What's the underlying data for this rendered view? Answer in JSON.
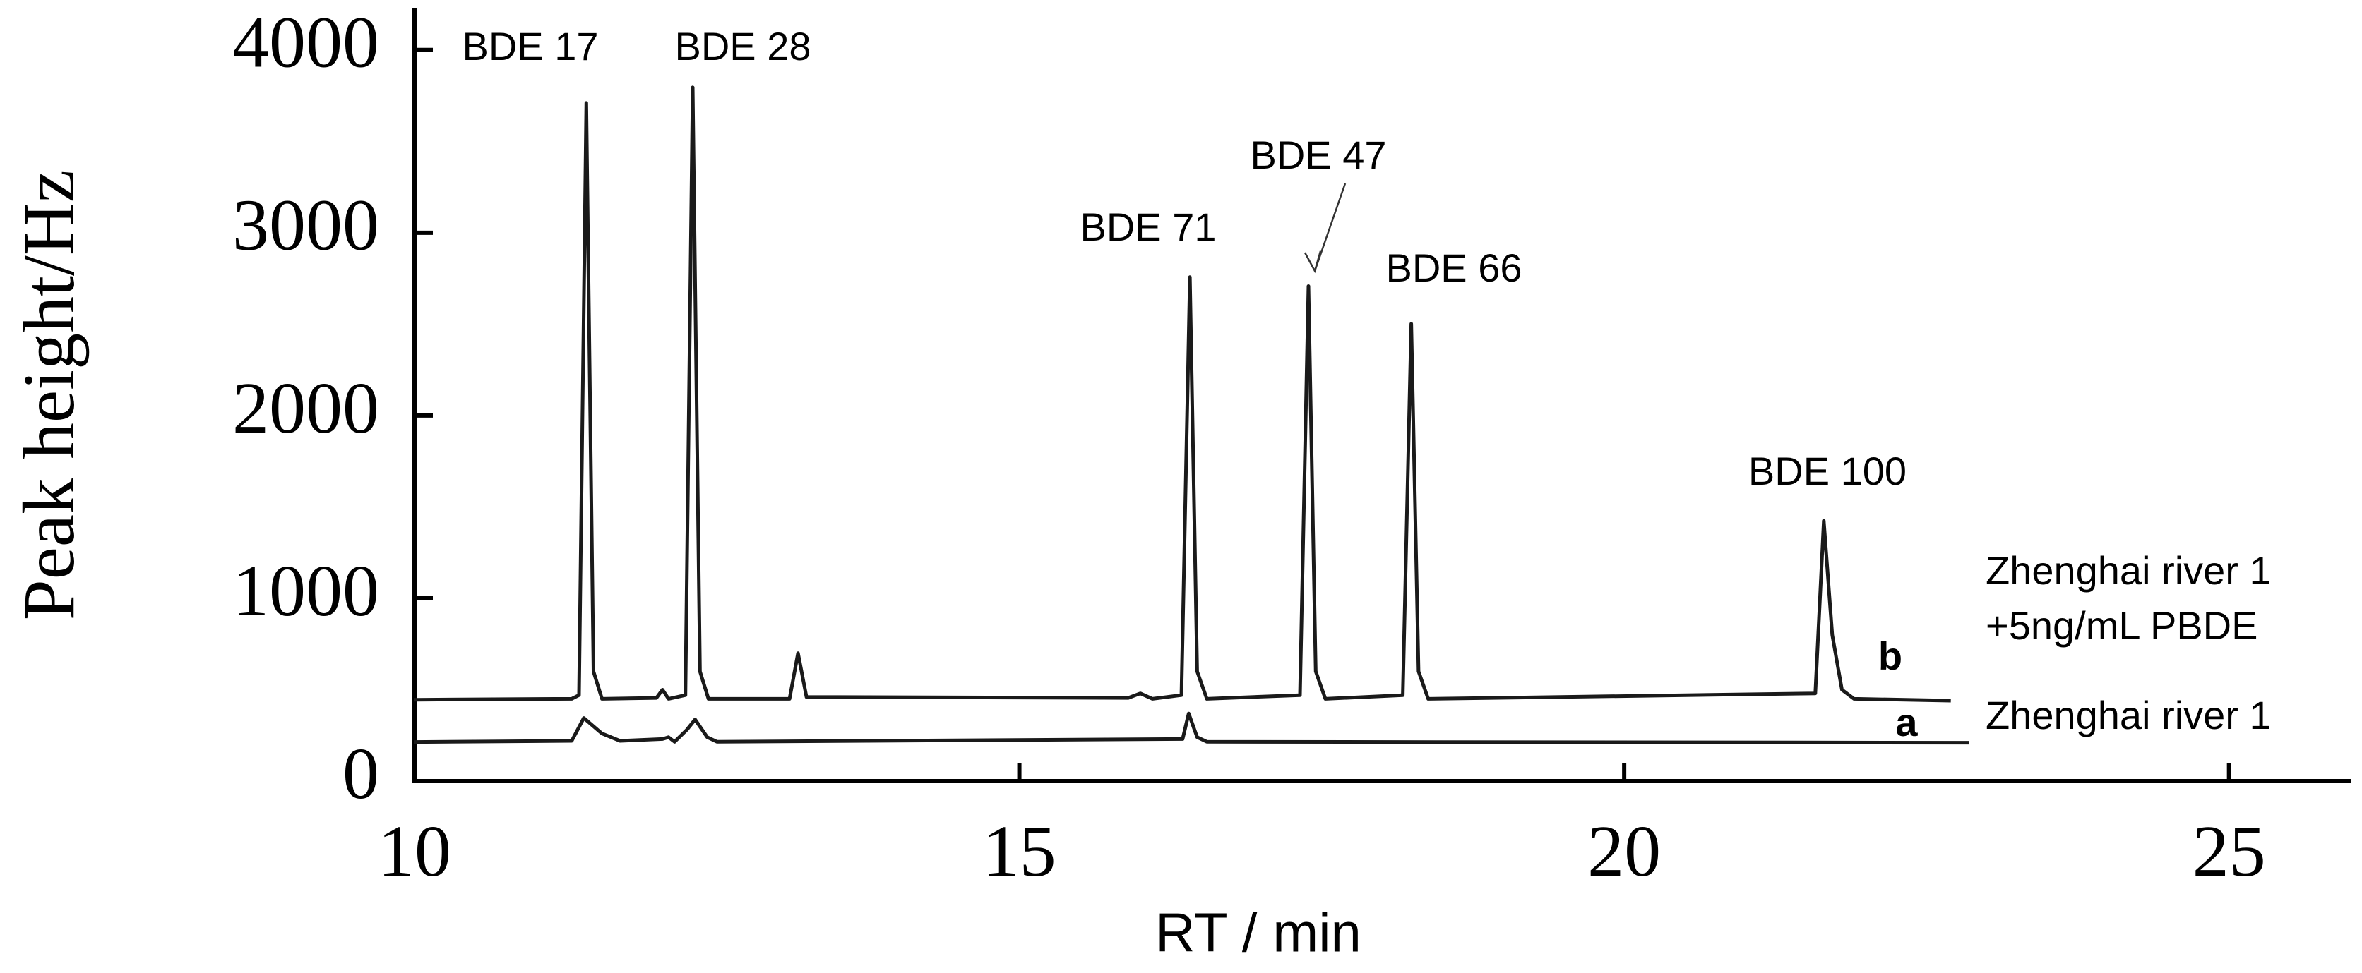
{
  "chart_data": {
    "type": "line",
    "xlabel": "RT / min",
    "ylabel": "Peak height/Hz",
    "xlim": [
      10,
      26
    ],
    "ylim": [
      0,
      4200
    ],
    "xticks": [
      10,
      15,
      20,
      25
    ],
    "yticks": [
      0,
      1000,
      2000,
      3000,
      4000
    ],
    "annotations": [
      "BDE 17",
      "BDE 28",
      "BDE 71",
      "BDE 47",
      "BDE 66",
      "BDE 100"
    ],
    "series": [
      {
        "name": "Zhenghai river 1 +5ng/mL PBDE",
        "label": "b",
        "color": "#1a1a1a",
        "x": [
          10,
          11.3,
          11.36,
          11.42,
          11.48,
          11.55,
          12.0,
          12.05,
          12.1,
          12.24,
          12.3,
          12.36,
          12.43,
          13.1,
          13.17,
          13.24,
          15.9,
          16.0,
          16.1,
          16.34,
          16.41,
          16.47,
          16.55,
          17.32,
          17.39,
          17.45,
          17.53,
          18.17,
          18.24,
          18.3,
          18.38,
          21.58,
          21.65,
          21.72,
          21.8,
          21.9,
          22.7
        ],
        "values": [
          445,
          450,
          470,
          3710,
          600,
          450,
          455,
          500,
          450,
          470,
          3795,
          600,
          450,
          450,
          700,
          460,
          455,
          480,
          450,
          470,
          2757,
          600,
          450,
          470,
          2708,
          600,
          450,
          470,
          2502,
          600,
          450,
          480,
          1424,
          800,
          500,
          450,
          440
        ]
      },
      {
        "name": "Zhenghai river 1",
        "label": "a",
        "color": "#1a1a1a",
        "x": [
          10,
          11.3,
          11.4,
          11.55,
          11.7,
          12.05,
          12.1,
          12.15,
          12.25,
          12.32,
          12.42,
          12.5,
          16.35,
          16.4,
          16.47,
          16.55,
          22.85
        ],
        "values": [
          214,
          220,
          345,
          260,
          220,
          230,
          240,
          215,
          280,
          337,
          240,
          215,
          230,
          370,
          240,
          215,
          210
        ]
      }
    ]
  }
}
